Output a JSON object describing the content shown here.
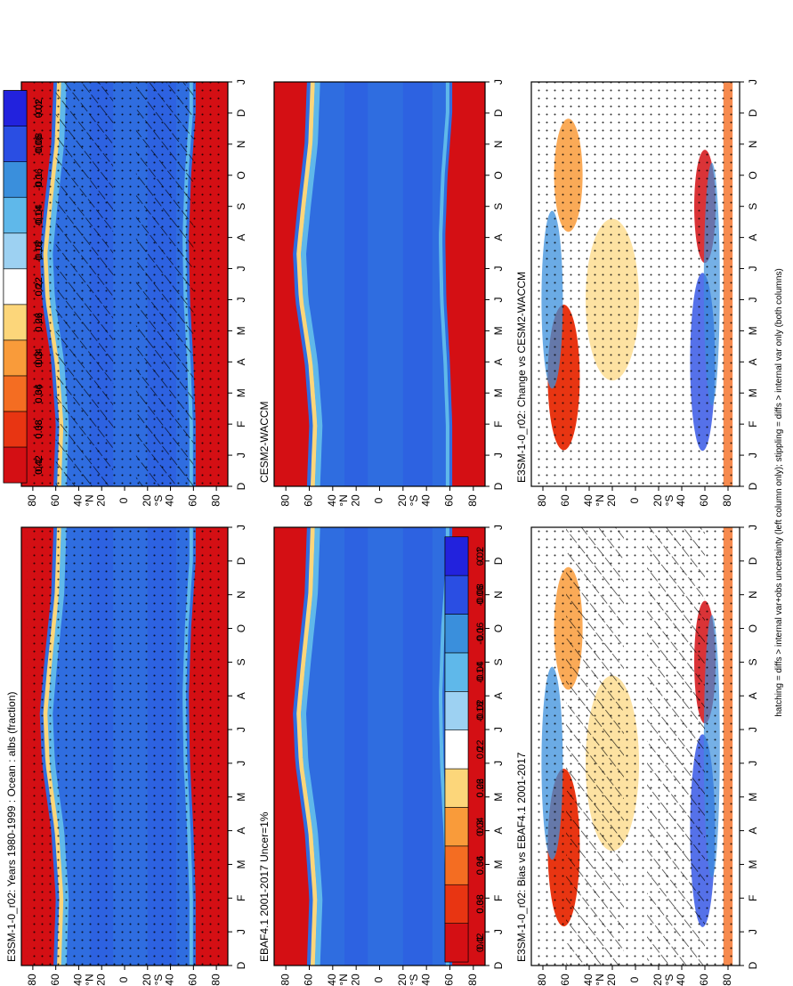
{
  "figure": {
    "footnote": "hatching = diffs > internal var+obs uncertainty (left column only); stippling = diffs > internal var only (both columns)"
  },
  "chart_data": [
    {
      "type": "heatmap",
      "id": "p1",
      "title": "E3SM-1-0_r02: Years 1980-1999 : Ocean : albs (fraction)",
      "x_ticks": [
        "D",
        "J",
        "F",
        "M",
        "A",
        "M",
        "J",
        "J",
        "A",
        "S",
        "O",
        "N",
        "D",
        "J"
      ],
      "y_ticks": [
        "80",
        "60",
        "40",
        "20",
        "0",
        "20",
        "40",
        "60",
        "80"
      ],
      "y_label_north": "°N",
      "y_label_south": "°S",
      "colorbar_labels": [
        "0.42",
        "0.38",
        "0.34",
        "0.3",
        "0.26",
        "0.22",
        "0.18",
        "0.14",
        "0.1",
        "0.06",
        "0.02"
      ],
      "overlay": "hatching+stippling",
      "field": "abs"
    },
    {
      "type": "heatmap",
      "id": "p2",
      "title": "E3SM-1-0_r02: Years 1980-1999 : Ocean : albs (fraction)",
      "x_ticks": [
        "D",
        "J",
        "F",
        "M",
        "A",
        "M",
        "J",
        "J",
        "A",
        "S",
        "O",
        "N",
        "D",
        "J"
      ],
      "y_ticks": [
        "80",
        "60",
        "40",
        "20",
        "0",
        "20",
        "40",
        "60",
        "80"
      ],
      "y_label_north": "°N",
      "y_label_south": "°S",
      "colorbar_labels": [
        "0.42",
        "0.38",
        "0.34",
        "0.3",
        "0.26",
        "0.22",
        "0.18",
        "0.14",
        "0.1",
        "0.06",
        "0.02"
      ],
      "overlay": "stippling",
      "field": "abs"
    },
    {
      "type": "heatmap",
      "id": "p3",
      "title": "EBAF4.1 2001-2017 Uncer=1%",
      "x_ticks": [
        "D",
        "J",
        "F",
        "M",
        "A",
        "M",
        "J",
        "J",
        "A",
        "S",
        "O",
        "N",
        "D",
        "J"
      ],
      "y_ticks": [
        "80",
        "60",
        "40",
        "20",
        "0",
        "20",
        "40",
        "60",
        "80"
      ],
      "y_label_north": "°N",
      "y_label_south": "°S",
      "colorbar_labels": [
        "0.42",
        "0.38",
        "0.34",
        "0.3",
        "0.26",
        "0.22",
        "0.18",
        "0.14",
        "0.1",
        "0.06",
        "0.02"
      ],
      "overlay": "none",
      "field": "abs"
    },
    {
      "type": "heatmap",
      "id": "p4",
      "title": "CESM2-WACCM",
      "x_ticks": [
        "D",
        "J",
        "F",
        "M",
        "A",
        "M",
        "J",
        "J",
        "A",
        "S",
        "O",
        "N",
        "D",
        "J"
      ],
      "y_ticks": [
        "80",
        "60",
        "40",
        "20",
        "0",
        "20",
        "40",
        "60",
        "80"
      ],
      "y_label_north": "°N",
      "y_label_south": "°S",
      "colorbar_labels": [
        "0.42",
        "0.38",
        "0.34",
        "0.3",
        "0.26",
        "0.22",
        "0.18",
        "0.14",
        "0.1",
        "0.06",
        "0.02"
      ],
      "overlay": "none",
      "field": "abs"
    },
    {
      "type": "heatmap",
      "id": "p5",
      "title": "E3SM-1-0_r02: Bias vs EBAF4.1 2001-2017",
      "x_ticks": [
        "D",
        "J",
        "F",
        "M",
        "A",
        "M",
        "J",
        "J",
        "A",
        "S",
        "O",
        "N",
        "D",
        "J"
      ],
      "y_ticks": [
        "80",
        "60",
        "40",
        "20",
        "0",
        "20",
        "40",
        "60",
        "80"
      ],
      "y_label_north": "°N",
      "y_label_south": "°S",
      "colorbar_labels": [
        "0.1",
        "0.08",
        "0.06",
        "0.04",
        "0.02",
        "0",
        "-0.02",
        "-0.04",
        "-0.06",
        "-0.08",
        "-0.1"
      ],
      "overlay": "hatching+stippling",
      "field": "diff"
    },
    {
      "type": "heatmap",
      "id": "p6",
      "title": "E3SM-1-0_r02: Change vs CESM2-WACCM",
      "x_ticks": [
        "D",
        "J",
        "F",
        "M",
        "A",
        "M",
        "J",
        "J",
        "A",
        "S",
        "O",
        "N",
        "D",
        "J"
      ],
      "y_ticks": [
        "80",
        "60",
        "40",
        "20",
        "0",
        "20",
        "40",
        "60",
        "80"
      ],
      "y_label_north": "°N",
      "y_label_south": "°S",
      "colorbar_labels": [
        "0.1",
        "0.08",
        "0.06",
        "0.04",
        "0.02",
        "0",
        "-0.02",
        "-0.04",
        "-0.06",
        "-0.08",
        "-0.1"
      ],
      "overlay": "stippling",
      "field": "diff"
    }
  ],
  "colors": {
    "abs_scale": [
      "#d40f14",
      "#e83512",
      "#f46d22",
      "#f99b3a",
      "#fcd67a",
      "#ffffff",
      "#5fb8ea",
      "#3a8fdc",
      "#2f6de0",
      "#2a4ee3",
      "#2222dd"
    ],
    "diff_scale": [
      "#d40f14",
      "#e83512",
      "#f46d22",
      "#f99b3a",
      "#fcd67a",
      "#ffffff",
      "#9dd1f2",
      "#5fb8ea",
      "#3a8fdc",
      "#2a4ee3",
      "#2222dd"
    ]
  }
}
